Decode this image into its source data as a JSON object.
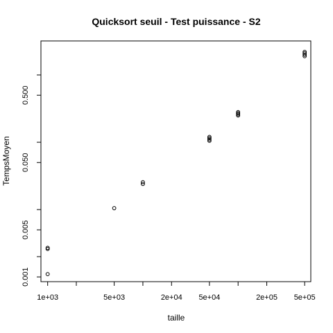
{
  "chart_data": {
    "type": "scatter",
    "title": "Quicksort seuil - Test puissance - S2",
    "xlabel": "taille",
    "ylabel": "TempsMoyen",
    "x_scale": "log",
    "y_scale": "log",
    "xlim": [
      850,
      580000
    ],
    "ylim": [
      0.00085,
      3.2
    ],
    "x_ticks": [
      {
        "value": 1000,
        "label": "1e+03"
      },
      {
        "value": 2000,
        "label": ""
      },
      {
        "value": 5000,
        "label": "5e+03"
      },
      {
        "value": 10000,
        "label": ""
      },
      {
        "value": 20000,
        "label": "2e+04"
      },
      {
        "value": 50000,
        "label": "5e+04"
      },
      {
        "value": 100000,
        "label": ""
      },
      {
        "value": 200000,
        "label": "2e+05"
      },
      {
        "value": 500000,
        "label": "5e+05"
      }
    ],
    "y_ticks": [
      {
        "value": 0.001,
        "label": "0.001"
      },
      {
        "value": 0.002,
        "label": ""
      },
      {
        "value": 0.005,
        "label": "0.005"
      },
      {
        "value": 0.01,
        "label": ""
      },
      {
        "value": 0.05,
        "label": "0.050"
      },
      {
        "value": 0.1,
        "label": ""
      },
      {
        "value": 0.5,
        "label": "0.500"
      },
      {
        "value": 1.0,
        "label": ""
      }
    ],
    "grid": false,
    "marker": "open-circle",
    "series": [
      {
        "points": [
          {
            "x": 1000,
            "y": 0.0011
          },
          {
            "x": 1000,
            "y": 0.0026
          },
          {
            "x": 1000,
            "y": 0.0027
          },
          {
            "x": 5000,
            "y": 0.0105
          },
          {
            "x": 10000,
            "y": 0.024
          },
          {
            "x": 10000,
            "y": 0.0255
          },
          {
            "x": 50000,
            "y": 0.105
          },
          {
            "x": 50000,
            "y": 0.11
          },
          {
            "x": 50000,
            "y": 0.115
          },
          {
            "x": 50000,
            "y": 0.12
          },
          {
            "x": 100000,
            "y": 0.25
          },
          {
            "x": 100000,
            "y": 0.26
          },
          {
            "x": 100000,
            "y": 0.27
          },
          {
            "x": 100000,
            "y": 0.28
          },
          {
            "x": 500000,
            "y": 1.9
          },
          {
            "x": 500000,
            "y": 2.0
          },
          {
            "x": 500000,
            "y": 2.1
          },
          {
            "x": 500000,
            "y": 2.2
          }
        ]
      }
    ]
  }
}
